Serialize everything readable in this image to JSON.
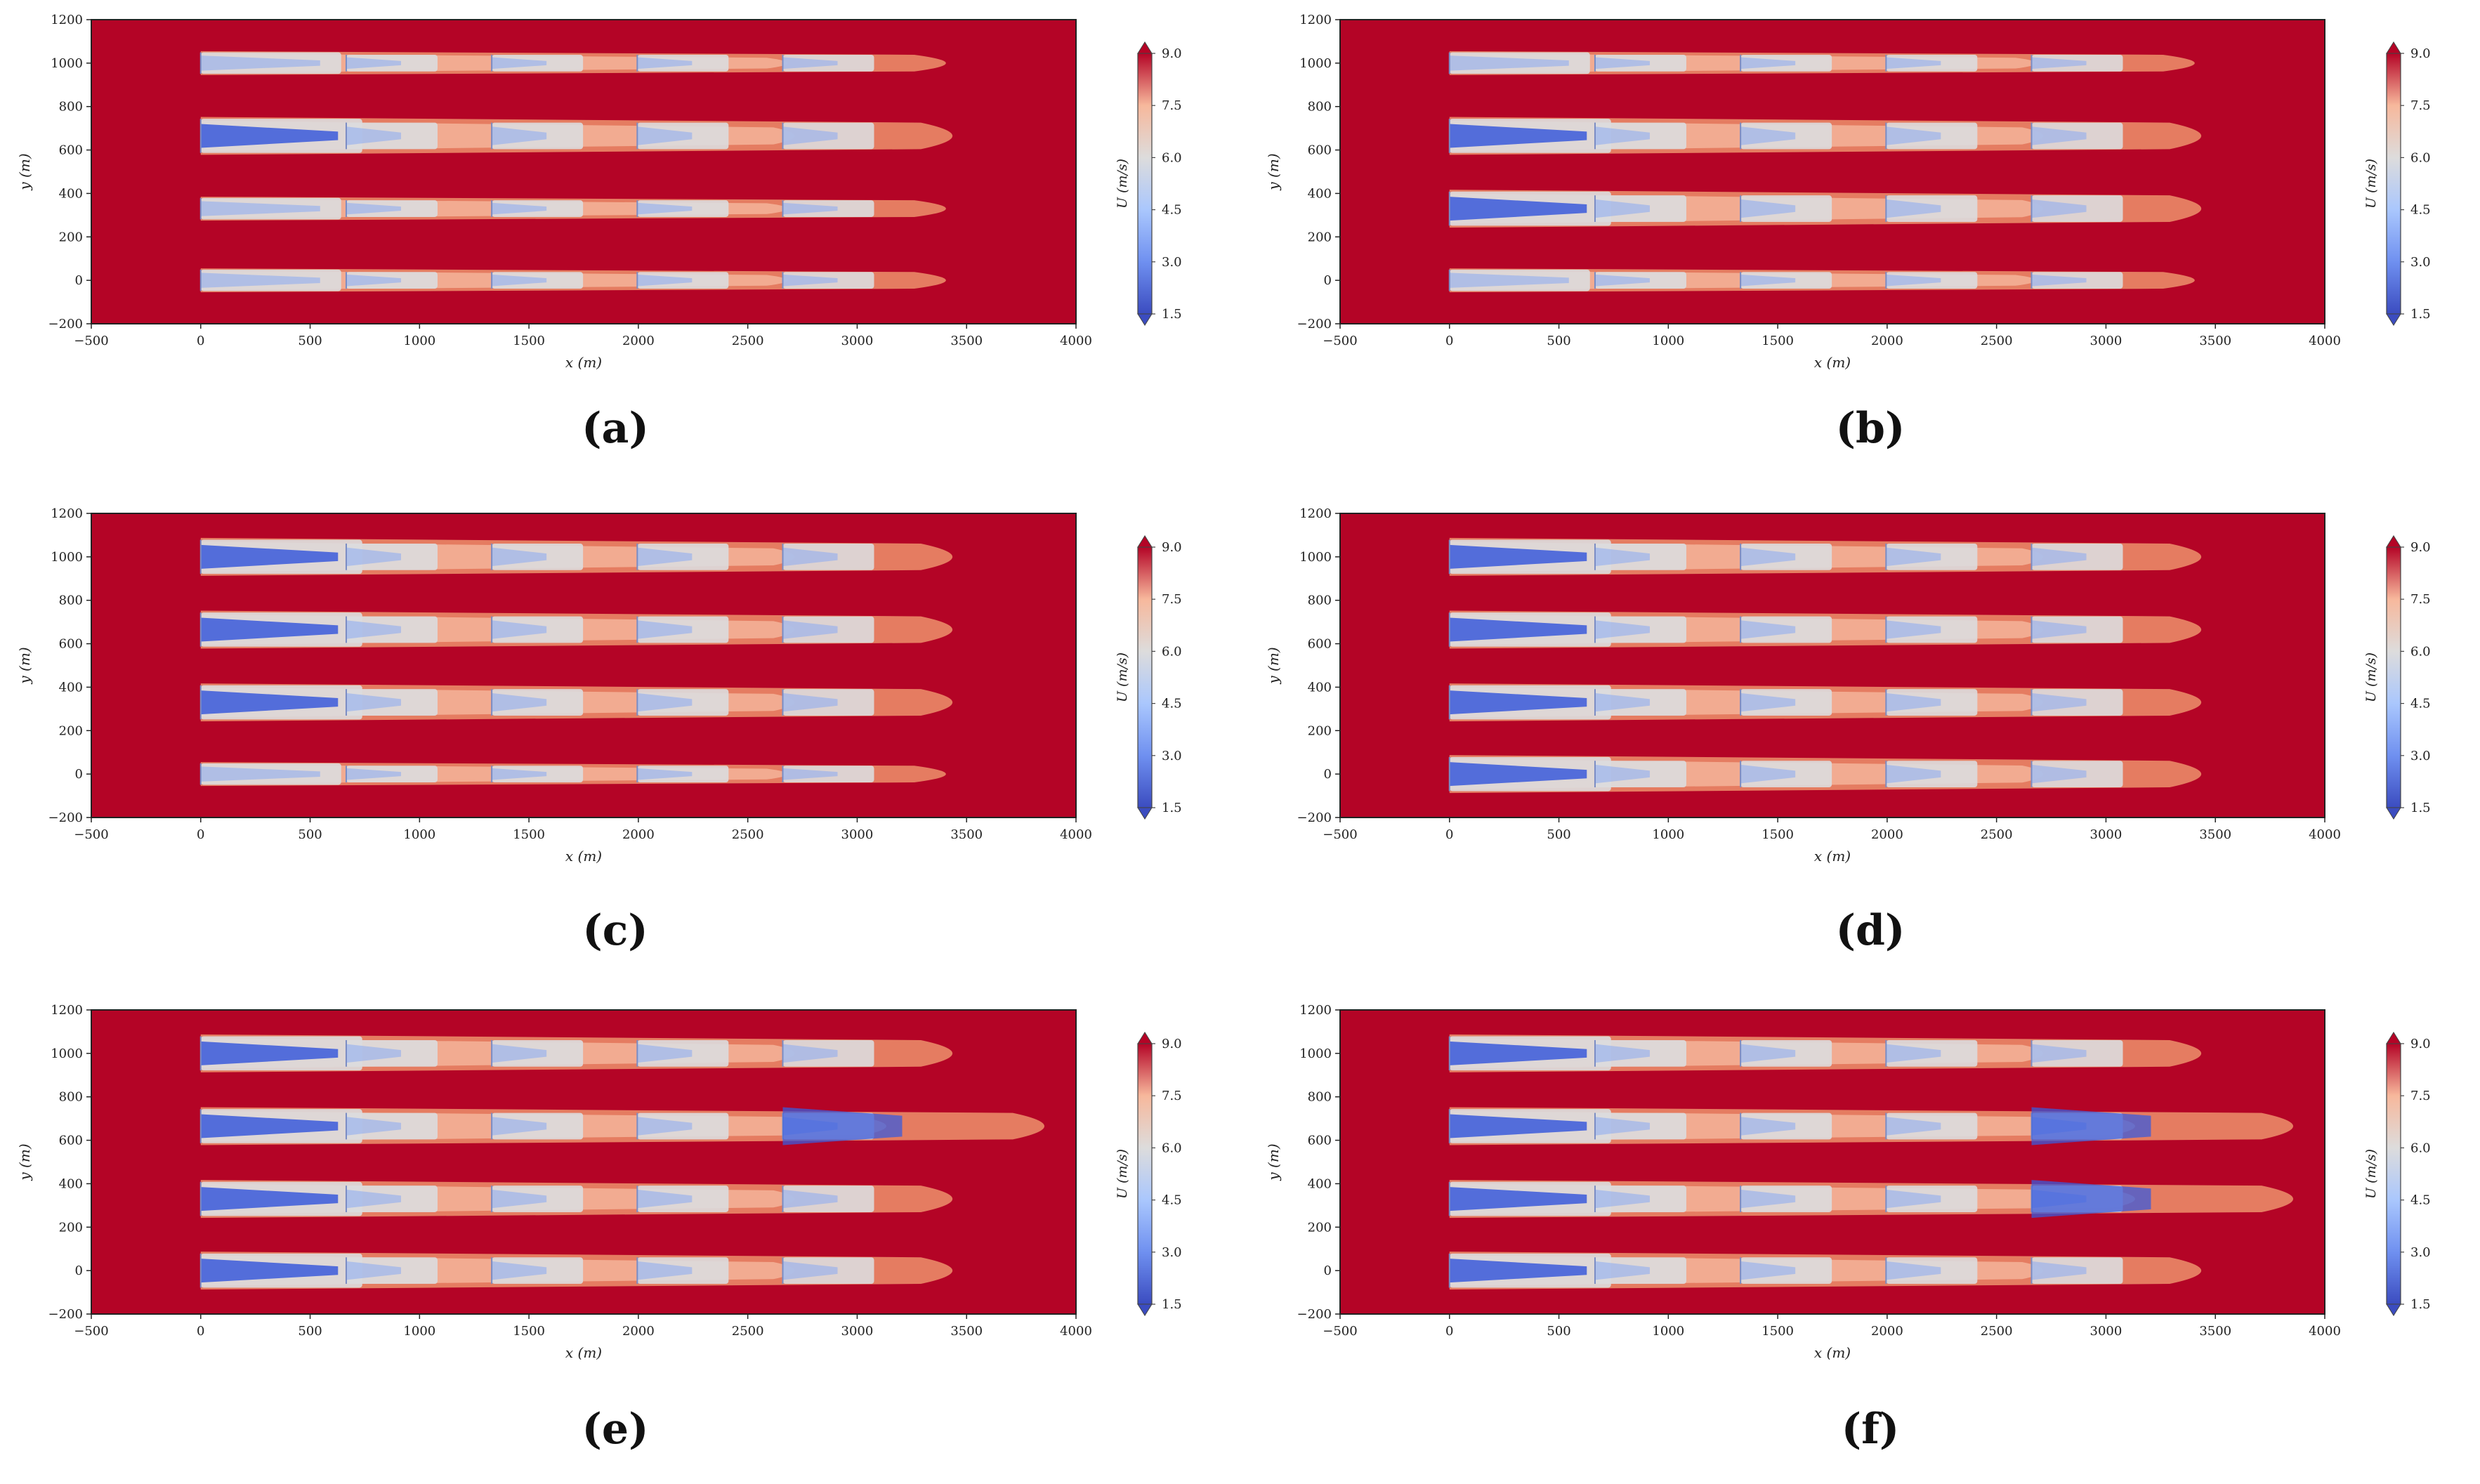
{
  "figure": {
    "panel_labels": [
      "(a)",
      "(b)",
      "(c)",
      "(d)",
      "(e)",
      "(f)"
    ]
  },
  "colors": {
    "background_field": "#b40426",
    "wake_outer": "#e57c61",
    "wake_mid": "#f4b49a",
    "wake_light": "#dcdcde",
    "wake_blue": "#8aaaf2",
    "wake_deep": "#3b5bdb",
    "cbar_top": "#b40426",
    "cbar_bottom": "#3b4cc0"
  },
  "chart_data": [
    {
      "panel": "(a)",
      "type": "heatmap",
      "xlabel": "x (m)",
      "ylabel": "y (m)",
      "xlim": [
        -500,
        4000
      ],
      "ylim": [
        -200,
        1200
      ],
      "xticks": [
        -500,
        0,
        500,
        1000,
        1500,
        2000,
        2500,
        3000,
        3500,
        4000
      ],
      "yticks": [
        -200,
        0,
        200,
        400,
        600,
        800,
        1000,
        1200
      ],
      "xtick_labels": [
        "−500",
        "0",
        "500",
        "1000",
        "1500",
        "2000",
        "2500",
        "3000",
        "3500",
        "4000"
      ],
      "ytick_labels": [
        "−200",
        "0",
        "200",
        "400",
        "600",
        "800",
        "1000",
        "1200"
      ],
      "colorbar": {
        "label": "U (m/s)",
        "ticks": [
          1.5,
          3.0,
          4.5,
          6.0,
          7.5,
          9.0
        ],
        "tick_labels": [
          "1.5",
          "3.0",
          "4.5",
          "6.0",
          "7.5",
          "9.0"
        ],
        "range": [
          1.5,
          9.0
        ]
      },
      "turbine_x": [
        0,
        665,
        1330,
        1995,
        2660
      ],
      "rows": [
        {
          "y": 1000,
          "wake_end_x": 3550,
          "strength": 0.25
        },
        {
          "y": 665,
          "wake_end_x": 3580,
          "strength": 0.95
        },
        {
          "y": 330,
          "wake_end_x": 3550,
          "strength": 0.25
        },
        {
          "y": 0,
          "wake_end_x": 3550,
          "strength": 0.25
        }
      ]
    },
    {
      "panel": "(b)",
      "type": "heatmap",
      "xlabel": "x (m)",
      "ylabel": "y (m)",
      "xlim": [
        -500,
        4000
      ],
      "ylim": [
        -200,
        1200
      ],
      "xticks": [
        -500,
        0,
        500,
        1000,
        1500,
        2000,
        2500,
        3000,
        3500,
        4000
      ],
      "yticks": [
        -200,
        0,
        200,
        400,
        600,
        800,
        1000,
        1200
      ],
      "xtick_labels": [
        "−500",
        "0",
        "500",
        "1000",
        "1500",
        "2000",
        "2500",
        "3000",
        "3500",
        "4000"
      ],
      "ytick_labels": [
        "−200",
        "0",
        "200",
        "400",
        "600",
        "800",
        "1000",
        "1200"
      ],
      "colorbar": {
        "label": "U (m/s)",
        "ticks": [
          1.5,
          3.0,
          4.5,
          6.0,
          7.5,
          9.0
        ],
        "tick_labels": [
          "1.5",
          "3.0",
          "4.5",
          "6.0",
          "7.5",
          "9.0"
        ],
        "range": [
          1.5,
          9.0
        ]
      },
      "turbine_x": [
        0,
        665,
        1330,
        1995,
        2660
      ],
      "rows": [
        {
          "y": 1000,
          "wake_end_x": 3550,
          "strength": 0.25
        },
        {
          "y": 665,
          "wake_end_x": 3580,
          "strength": 0.95
        },
        {
          "y": 330,
          "wake_end_x": 3580,
          "strength": 0.95
        },
        {
          "y": 0,
          "wake_end_x": 3550,
          "strength": 0.25
        }
      ]
    },
    {
      "panel": "(c)",
      "type": "heatmap",
      "xlabel": "x (m)",
      "ylabel": "y (m)",
      "xlim": [
        -500,
        4000
      ],
      "ylim": [
        -200,
        1200
      ],
      "xticks": [
        -500,
        0,
        500,
        1000,
        1500,
        2000,
        2500,
        3000,
        3500,
        4000
      ],
      "yticks": [
        -200,
        0,
        200,
        400,
        600,
        800,
        1000,
        1200
      ],
      "xtick_labels": [
        "−500",
        "0",
        "500",
        "1000",
        "1500",
        "2000",
        "2500",
        "3000",
        "3500",
        "4000"
      ],
      "ytick_labels": [
        "−200",
        "0",
        "200",
        "400",
        "600",
        "800",
        "1000",
        "1200"
      ],
      "colorbar": {
        "label": "U (m/s)",
        "ticks": [
          1.5,
          3.0,
          4.5,
          6.0,
          7.5,
          9.0
        ],
        "tick_labels": [
          "1.5",
          "3.0",
          "4.5",
          "6.0",
          "7.5",
          "9.0"
        ],
        "range": [
          1.5,
          9.0
        ]
      },
      "turbine_x": [
        0,
        665,
        1330,
        1995,
        2660
      ],
      "rows": [
        {
          "y": 1000,
          "wake_end_x": 3580,
          "strength": 0.95
        },
        {
          "y": 665,
          "wake_end_x": 3580,
          "strength": 0.95
        },
        {
          "y": 330,
          "wake_end_x": 3580,
          "strength": 0.95
        },
        {
          "y": 0,
          "wake_end_x": 3550,
          "strength": 0.25
        }
      ]
    },
    {
      "panel": "(d)",
      "type": "heatmap",
      "xlabel": "x (m)",
      "ylabel": "y (m)",
      "xlim": [
        -500,
        4000
      ],
      "ylim": [
        -200,
        1200
      ],
      "xticks": [
        -500,
        0,
        500,
        1000,
        1500,
        2000,
        2500,
        3000,
        3500,
        4000
      ],
      "yticks": [
        -200,
        0,
        200,
        400,
        600,
        800,
        1000,
        1200
      ],
      "xtick_labels": [
        "−500",
        "0",
        "500",
        "1000",
        "1500",
        "2000",
        "2500",
        "3000",
        "3500",
        "4000"
      ],
      "ytick_labels": [
        "−200",
        "0",
        "200",
        "400",
        "600",
        "800",
        "1000",
        "1200"
      ],
      "colorbar": {
        "label": "U (m/s)",
        "ticks": [
          1.5,
          3.0,
          4.5,
          6.0,
          7.5,
          9.0
        ],
        "tick_labels": [
          "1.5",
          "3.0",
          "4.5",
          "6.0",
          "7.5",
          "9.0"
        ],
        "range": [
          1.5,
          9.0
        ]
      },
      "turbine_x": [
        0,
        665,
        1330,
        1995,
        2660
      ],
      "rows": [
        {
          "y": 1000,
          "wake_end_x": 3580,
          "strength": 0.95
        },
        {
          "y": 665,
          "wake_end_x": 3580,
          "strength": 0.95
        },
        {
          "y": 330,
          "wake_end_x": 3580,
          "strength": 0.95
        },
        {
          "y": 0,
          "wake_end_x": 3580,
          "strength": 0.95
        }
      ]
    },
    {
      "panel": "(e)",
      "type": "heatmap",
      "xlabel": "x (m)",
      "ylabel": "y (m)",
      "xlim": [
        -500,
        4000
      ],
      "ylim": [
        -200,
        1200
      ],
      "xticks": [
        -500,
        0,
        500,
        1000,
        1500,
        2000,
        2500,
        3000,
        3500,
        4000
      ],
      "yticks": [
        -200,
        0,
        200,
        400,
        600,
        800,
        1000,
        1200
      ],
      "xtick_labels": [
        "−500",
        "0",
        "500",
        "1000",
        "1500",
        "2000",
        "2500",
        "3000",
        "3500",
        "4000"
      ],
      "ytick_labels": [
        "−200",
        "0",
        "200",
        "400",
        "600",
        "800",
        "1000",
        "1200"
      ],
      "colorbar": {
        "label": "U (m/s)",
        "ticks": [
          1.5,
          3.0,
          4.5,
          6.0,
          7.5,
          9.0
        ],
        "tick_labels": [
          "1.5",
          "3.0",
          "4.5",
          "6.0",
          "7.5",
          "9.0"
        ],
        "range": [
          1.5,
          9.0
        ]
      },
      "turbine_x": [
        0,
        665,
        1330,
        1995,
        2660
      ],
      "rows": [
        {
          "y": 1000,
          "wake_end_x": 3580,
          "strength": 0.95
        },
        {
          "y": 665,
          "wake_end_x": 4000,
          "strength": 0.95,
          "extra_turbine_x": 2660
        },
        {
          "y": 330,
          "wake_end_x": 3580,
          "strength": 0.95
        },
        {
          "y": 0,
          "wake_end_x": 3580,
          "strength": 0.95
        }
      ]
    },
    {
      "panel": "(f)",
      "type": "heatmap",
      "xlabel": "x (m)",
      "ylabel": "y (m)",
      "xlim": [
        -500,
        4000
      ],
      "ylim": [
        -200,
        1200
      ],
      "xticks": [
        -500,
        0,
        500,
        1000,
        1500,
        2000,
        2500,
        3000,
        3500,
        4000
      ],
      "yticks": [
        -200,
        0,
        200,
        400,
        600,
        800,
        1000,
        1200
      ],
      "xtick_labels": [
        "−500",
        "0",
        "500",
        "1000",
        "1500",
        "2000",
        "2500",
        "3000",
        "3500",
        "4000"
      ],
      "ytick_labels": [
        "−200",
        "0",
        "200",
        "400",
        "600",
        "800",
        "1000",
        "1200"
      ],
      "colorbar": {
        "label": "U (m/s)",
        "ticks": [
          1.5,
          3.0,
          4.5,
          6.0,
          7.5,
          9.0
        ],
        "tick_labels": [
          "1.5",
          "3.0",
          "4.5",
          "6.0",
          "7.5",
          "9.0"
        ],
        "range": [
          1.5,
          9.0
        ]
      },
      "turbine_x": [
        0,
        665,
        1330,
        1995,
        2660
      ],
      "rows": [
        {
          "y": 1000,
          "wake_end_x": 3580,
          "strength": 0.95
        },
        {
          "y": 665,
          "wake_end_x": 4000,
          "strength": 0.95,
          "extra_turbine_x": 2660
        },
        {
          "y": 330,
          "wake_end_x": 4000,
          "strength": 0.95,
          "extra_turbine_x": 2660
        },
        {
          "y": 0,
          "wake_end_x": 3580,
          "strength": 0.95
        }
      ]
    }
  ]
}
